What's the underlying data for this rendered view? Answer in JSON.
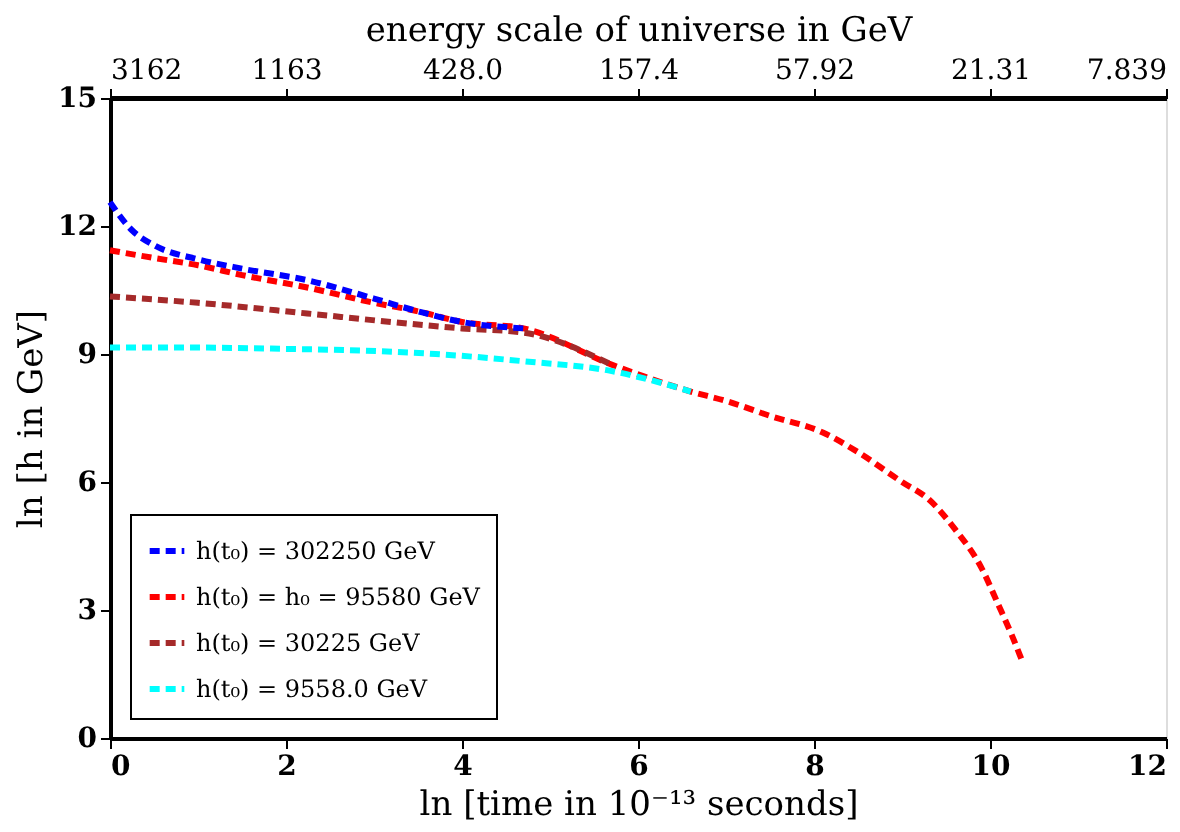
{
  "chart_data": {
    "type": "line",
    "xlabel": "ln [time in 10⁻¹³ seconds]",
    "ylabel": "ln [h in GeV]",
    "x2label": "energy scale of universe in GeV",
    "xlim": [
      0,
      12
    ],
    "xticks": [
      0,
      2,
      4,
      6,
      8,
      10,
      12
    ],
    "ylim": [
      0,
      15
    ],
    "yticks": [
      0,
      3,
      6,
      9,
      12,
      15
    ],
    "x2lim": [
      3162,
      7.839
    ],
    "x2ticks": [
      3162,
      1163,
      {
        "value": 428.0,
        "label": "428.0"
      },
      157.4,
      57.92,
      21.31,
      7.839
    ],
    "log": "x2",
    "grid": false,
    "legend": "bottom left",
    "line_style": "dashed",
    "marker": "none",
    "series": [
      {
        "name": "h(t₀) = 302250 GeV",
        "color": "#0000ff",
        "x": [
          0,
          0.25,
          0.5,
          1,
          1.5,
          2.24,
          3,
          3.5,
          4,
          4.7
        ],
        "values": [
          12.56,
          11.9,
          11.55,
          11.22,
          11.0,
          10.73,
          10.3,
          10.0,
          9.75,
          9.6
        ]
      },
      {
        "name": "h(t₀) = h₀ = 95580 GeV",
        "color": "#ff0000",
        "x": [
          0,
          0.5,
          1,
          1.5,
          2.24,
          3,
          3.5,
          4,
          4.7,
          5.7,
          6.6,
          7,
          7.5,
          8.1,
          8.5,
          9,
          9.3,
          9.6,
          9.9,
          10.1,
          10.25,
          10.37
        ],
        "values": [
          11.43,
          11.25,
          11.08,
          10.85,
          10.56,
          10.2,
          10.0,
          9.75,
          9.6,
          8.75,
          8.12,
          7.9,
          7.55,
          7.16,
          6.7,
          6.0,
          5.6,
          4.9,
          4.0,
          3.1,
          2.4,
          1.78
        ]
      },
      {
        "name": "h(t₀) = 30225 GeV",
        "color": "#a52a2a",
        "x": [
          0,
          1,
          2.24,
          3.2,
          4,
          4.7,
          5.7
        ],
        "values": [
          10.35,
          10.2,
          9.95,
          9.75,
          9.6,
          9.5,
          8.75
        ]
      },
      {
        "name": "h(t₀) = 9558.0 GeV",
        "color": "#00ffff",
        "x": [
          0,
          1,
          2,
          2.5,
          3.7,
          4.7,
          5.7,
          6.6
        ],
        "values": [
          9.15,
          9.15,
          9.12,
          9.1,
          9.0,
          8.83,
          8.6,
          8.12
        ]
      }
    ]
  }
}
